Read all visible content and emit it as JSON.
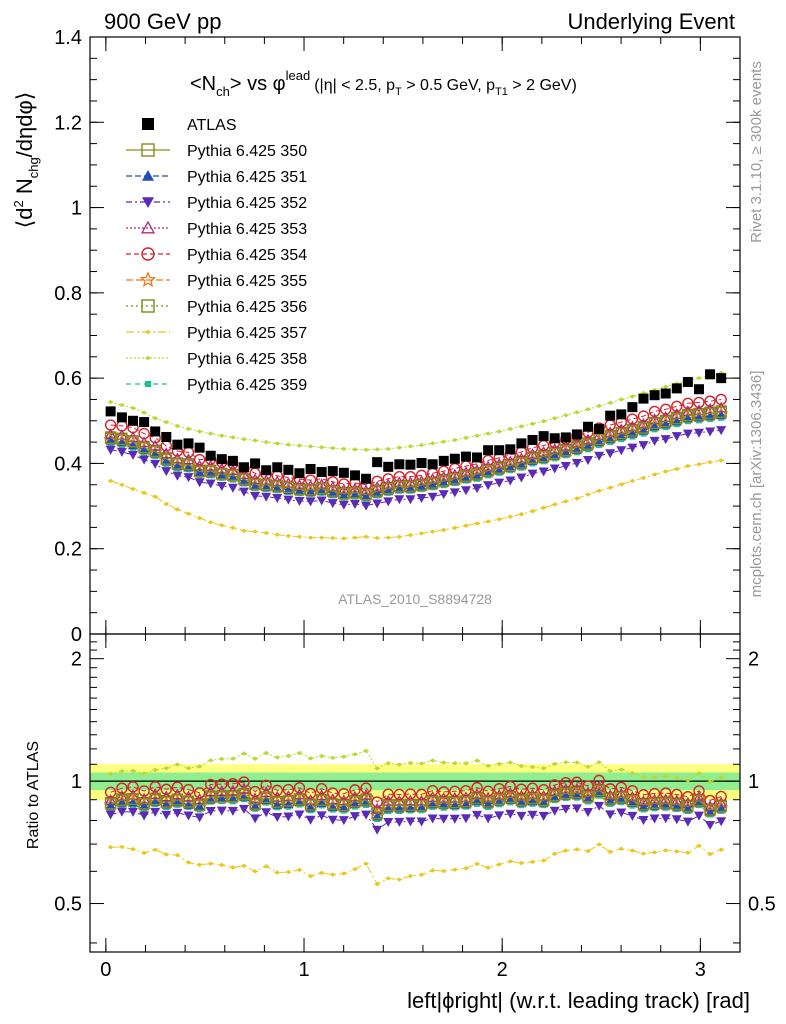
{
  "header": {
    "left": "900 GeV pp",
    "right": "Underlying Event"
  },
  "side_labels": {
    "rivet": "Rivet 3.1.10, ≥ 300k events",
    "mcplots": "mcplots.cern.ch [arXiv:1306.3436]"
  },
  "watermark": "ATLAS_2010_S8894728",
  "colors": {
    "ATLAS": "#000000",
    "350": "#8b8b20",
    "351": "#1f4fb4",
    "352": "#5b2bb8",
    "353": "#b4287a",
    "354": "#d8202a",
    "355": "#f07818",
    "356": "#7c8a10",
    "357": "#e8c81a",
    "358": "#bcd830",
    "359": "#20c090",
    "band_inner": "#90ee90",
    "band_outer": "#ffff80"
  },
  "chart_data": [
    {
      "type": "scatter",
      "title_parts": {
        "main": "<N",
        "main_sub": "ch",
        "vs": "> vs φ",
        "vs_sup": "lead",
        "cuts": "(|η| < 2.5, p",
        "cuts_sub1": "T",
        "cuts_mid": " > 0.5 GeV, p",
        "cuts_sub2": "T1",
        "cuts_end": " > 2 GeV)"
      },
      "ylabel_parts": {
        "a": "⟨d",
        "sup": "2",
        "b": " N",
        "sub": "chg",
        "c": "/dηdφ⟩"
      },
      "xlim": [
        -0.08,
        3.2
      ],
      "ylim": [
        0,
        1.4
      ],
      "yticks": [
        "0",
        "0.2",
        "0.4",
        "0.6",
        "0.8",
        "1",
        "1.2",
        "1.4"
      ],
      "x": [
        0.024,
        0.081,
        0.137,
        0.193,
        0.249,
        0.305,
        0.361,
        0.417,
        0.473,
        0.529,
        0.585,
        0.641,
        0.697,
        0.753,
        0.809,
        0.865,
        0.921,
        0.977,
        1.033,
        1.089,
        1.145,
        1.201,
        1.257,
        1.313,
        1.369,
        1.425,
        1.481,
        1.537,
        1.593,
        1.649,
        1.705,
        1.761,
        1.817,
        1.873,
        1.929,
        1.985,
        2.041,
        2.097,
        2.153,
        2.209,
        2.265,
        2.321,
        2.377,
        2.433,
        2.489,
        2.545,
        2.601,
        2.657,
        2.713,
        2.769,
        2.825,
        2.881,
        2.937,
        2.993,
        3.049,
        3.105
      ],
      "series": [
        {
          "name": "ATLAS",
          "key": "ATLAS",
          "marker": "square-filled",
          "values": [
            0.522,
            0.508,
            0.5,
            0.497,
            0.475,
            0.462,
            0.444,
            0.447,
            0.437,
            0.418,
            0.41,
            0.406,
            0.391,
            0.4,
            0.384,
            0.391,
            0.385,
            0.377,
            0.387,
            0.38,
            0.382,
            0.378,
            0.372,
            0.364,
            0.403,
            0.392,
            0.398,
            0.397,
            0.401,
            0.398,
            0.406,
            0.411,
            0.416,
            0.414,
            0.431,
            0.431,
            0.433,
            0.447,
            0.455,
            0.464,
            0.459,
            0.461,
            0.468,
            0.486,
            0.481,
            0.512,
            0.515,
            0.532,
            0.552,
            0.56,
            0.564,
            0.576,
            0.591,
            0.574,
            0.609,
            0.6
          ]
        },
        {
          "name": "Pythia 6.425 350",
          "key": "350",
          "marker": "square-open",
          "values": [
            0.459,
            0.456,
            0.451,
            0.437,
            0.428,
            0.41,
            0.399,
            0.397,
            0.381,
            0.382,
            0.375,
            0.372,
            0.363,
            0.351,
            0.35,
            0.347,
            0.344,
            0.339,
            0.338,
            0.341,
            0.335,
            0.329,
            0.331,
            0.327,
            0.335,
            0.341,
            0.346,
            0.346,
            0.349,
            0.354,
            0.359,
            0.364,
            0.37,
            0.375,
            0.383,
            0.389,
            0.395,
            0.401,
            0.412,
            0.416,
            0.423,
            0.43,
            0.438,
            0.445,
            0.456,
            0.463,
            0.47,
            0.476,
            0.483,
            0.494,
            0.498,
            0.505,
            0.512,
            0.514,
            0.517,
            0.52
          ]
        },
        {
          "name": "Pythia 6.425 351",
          "key": "351",
          "marker": "triangle-up-filled",
          "values": [
            0.454,
            0.45,
            0.443,
            0.432,
            0.423,
            0.405,
            0.394,
            0.391,
            0.379,
            0.377,
            0.372,
            0.368,
            0.358,
            0.347,
            0.345,
            0.342,
            0.338,
            0.335,
            0.333,
            0.336,
            0.33,
            0.325,
            0.327,
            0.323,
            0.33,
            0.336,
            0.341,
            0.341,
            0.345,
            0.349,
            0.355,
            0.359,
            0.365,
            0.37,
            0.378,
            0.384,
            0.39,
            0.396,
            0.406,
            0.411,
            0.418,
            0.425,
            0.432,
            0.44,
            0.45,
            0.457,
            0.464,
            0.47,
            0.477,
            0.487,
            0.492,
            0.499,
            0.506,
            0.508,
            0.511,
            0.514
          ]
        },
        {
          "name": "Pythia 6.425 352",
          "key": "352",
          "marker": "triangle-down-filled",
          "values": [
            0.432,
            0.427,
            0.42,
            0.409,
            0.399,
            0.382,
            0.371,
            0.368,
            0.356,
            0.353,
            0.347,
            0.343,
            0.334,
            0.324,
            0.322,
            0.319,
            0.315,
            0.312,
            0.311,
            0.313,
            0.307,
            0.303,
            0.305,
            0.301,
            0.306,
            0.311,
            0.316,
            0.316,
            0.319,
            0.322,
            0.328,
            0.332,
            0.337,
            0.342,
            0.349,
            0.355,
            0.36,
            0.367,
            0.376,
            0.381,
            0.388,
            0.394,
            0.401,
            0.408,
            0.418,
            0.424,
            0.431,
            0.437,
            0.443,
            0.453,
            0.457,
            0.464,
            0.47,
            0.472,
            0.475,
            0.478
          ]
        },
        {
          "name": "Pythia 6.425 353",
          "key": "353",
          "marker": "triangle-up-open",
          "values": [
            0.468,
            0.466,
            0.461,
            0.449,
            0.441,
            0.423,
            0.411,
            0.409,
            0.394,
            0.394,
            0.387,
            0.384,
            0.374,
            0.362,
            0.36,
            0.357,
            0.353,
            0.349,
            0.347,
            0.35,
            0.344,
            0.338,
            0.34,
            0.336,
            0.344,
            0.35,
            0.355,
            0.355,
            0.358,
            0.363,
            0.368,
            0.373,
            0.379,
            0.384,
            0.392,
            0.398,
            0.404,
            0.411,
            0.421,
            0.426,
            0.433,
            0.44,
            0.447,
            0.455,
            0.465,
            0.472,
            0.479,
            0.486,
            0.492,
            0.503,
            0.508,
            0.515,
            0.522,
            0.524,
            0.527,
            0.53
          ]
        },
        {
          "name": "Pythia 6.425 354",
          "key": "354",
          "marker": "circle-open",
          "values": [
            0.49,
            0.488,
            0.484,
            0.47,
            0.46,
            0.441,
            0.429,
            0.426,
            0.409,
            0.41,
            0.403,
            0.4,
            0.389,
            0.377,
            0.375,
            0.371,
            0.367,
            0.363,
            0.361,
            0.364,
            0.357,
            0.352,
            0.354,
            0.35,
            0.358,
            0.364,
            0.369,
            0.369,
            0.372,
            0.377,
            0.382,
            0.388,
            0.394,
            0.399,
            0.407,
            0.413,
            0.42,
            0.427,
            0.437,
            0.442,
            0.449,
            0.457,
            0.465,
            0.473,
            0.483,
            0.49,
            0.497,
            0.504,
            0.511,
            0.522,
            0.527,
            0.534,
            0.541,
            0.543,
            0.546,
            0.55
          ]
        },
        {
          "name": "Pythia 6.425 355",
          "key": "355",
          "marker": "star-open",
          "values": [
            0.456,
            0.452,
            0.446,
            0.434,
            0.425,
            0.407,
            0.396,
            0.394,
            0.38,
            0.379,
            0.373,
            0.37,
            0.36,
            0.349,
            0.347,
            0.344,
            0.34,
            0.337,
            0.335,
            0.338,
            0.332,
            0.327,
            0.329,
            0.325,
            0.332,
            0.338,
            0.343,
            0.343,
            0.347,
            0.351,
            0.357,
            0.361,
            0.367,
            0.372,
            0.38,
            0.386,
            0.392,
            0.398,
            0.409,
            0.413,
            0.42,
            0.427,
            0.435,
            0.442,
            0.452,
            0.459,
            0.466,
            0.473,
            0.48,
            0.49,
            0.494,
            0.501,
            0.508,
            0.51,
            0.513,
            0.516
          ]
        },
        {
          "name": "Pythia 6.425 356",
          "key": "356",
          "marker": "square-open",
          "values": [
            0.462,
            0.459,
            0.453,
            0.44,
            0.431,
            0.413,
            0.401,
            0.399,
            0.384,
            0.384,
            0.377,
            0.374,
            0.364,
            0.353,
            0.351,
            0.348,
            0.345,
            0.341,
            0.339,
            0.342,
            0.336,
            0.331,
            0.333,
            0.329,
            0.337,
            0.343,
            0.348,
            0.348,
            0.351,
            0.356,
            0.361,
            0.366,
            0.372,
            0.377,
            0.385,
            0.391,
            0.397,
            0.404,
            0.414,
            0.419,
            0.426,
            0.433,
            0.441,
            0.448,
            0.458,
            0.465,
            0.472,
            0.479,
            0.486,
            0.496,
            0.501,
            0.508,
            0.515,
            0.517,
            0.52,
            0.523
          ]
        },
        {
          "name": "Pythia 6.425 357",
          "key": "357",
          "marker": "dot",
          "values": [
            0.359,
            0.35,
            0.34,
            0.331,
            0.322,
            0.305,
            0.292,
            0.282,
            0.272,
            0.262,
            0.255,
            0.249,
            0.242,
            0.24,
            0.237,
            0.233,
            0.23,
            0.228,
            0.226,
            0.226,
            0.225,
            0.224,
            0.226,
            0.228,
            0.225,
            0.226,
            0.228,
            0.232,
            0.236,
            0.24,
            0.244,
            0.249,
            0.254,
            0.259,
            0.264,
            0.269,
            0.275,
            0.281,
            0.288,
            0.296,
            0.304,
            0.311,
            0.318,
            0.327,
            0.336,
            0.343,
            0.351,
            0.359,
            0.366,
            0.374,
            0.381,
            0.387,
            0.394,
            0.398,
            0.403,
            0.407
          ]
        },
        {
          "name": "Pythia 6.425 358",
          "key": "358",
          "marker": "dot",
          "values": [
            0.544,
            0.537,
            0.53,
            0.519,
            0.506,
            0.497,
            0.488,
            0.481,
            0.475,
            0.47,
            0.465,
            0.461,
            0.457,
            0.454,
            0.45,
            0.447,
            0.444,
            0.442,
            0.44,
            0.438,
            0.436,
            0.434,
            0.433,
            0.432,
            0.433,
            0.434,
            0.437,
            0.44,
            0.443,
            0.447,
            0.451,
            0.455,
            0.46,
            0.465,
            0.47,
            0.475,
            0.481,
            0.487,
            0.493,
            0.499,
            0.506,
            0.513,
            0.52,
            0.527,
            0.535,
            0.542,
            0.55,
            0.557,
            0.565,
            0.572,
            0.58,
            0.587,
            0.594,
            0.6,
            0.606,
            0.612
          ]
        },
        {
          "name": "Pythia 6.425 359",
          "key": "359",
          "marker": "square-small-filled",
          "values": [
            0.447,
            0.443,
            0.437,
            0.425,
            0.417,
            0.399,
            0.388,
            0.386,
            0.372,
            0.372,
            0.366,
            0.362,
            0.353,
            0.342,
            0.34,
            0.337,
            0.333,
            0.33,
            0.328,
            0.331,
            0.325,
            0.32,
            0.322,
            0.318,
            0.325,
            0.331,
            0.336,
            0.336,
            0.34,
            0.344,
            0.349,
            0.354,
            0.36,
            0.364,
            0.372,
            0.378,
            0.384,
            0.39,
            0.4,
            0.405,
            0.412,
            0.419,
            0.426,
            0.433,
            0.443,
            0.45,
            0.457,
            0.463,
            0.47,
            0.48,
            0.485,
            0.492,
            0.499,
            0.501,
            0.504,
            0.507
          ]
        }
      ],
      "legend_position": "top-left",
      "grid": false
    },
    {
      "type": "scatter",
      "xlabel": "left|ϕright| (w.r.t. leading track) [rad]",
      "ylabel": "Ratio to ATLAS",
      "xlim": [
        -0.08,
        3.2
      ],
      "ylim": [
        0.38,
        2.3
      ],
      "xticks": [
        "0",
        "1",
        "2",
        "3"
      ],
      "yticks": [
        "0.5",
        "1",
        "2"
      ],
      "reference_line": 1.0,
      "band_inner": [
        0.95,
        1.05
      ],
      "band_outer": [
        0.9,
        1.1
      ],
      "ratio_note": "ratio of each Pythia series to ATLAS values",
      "grid": false
    }
  ]
}
